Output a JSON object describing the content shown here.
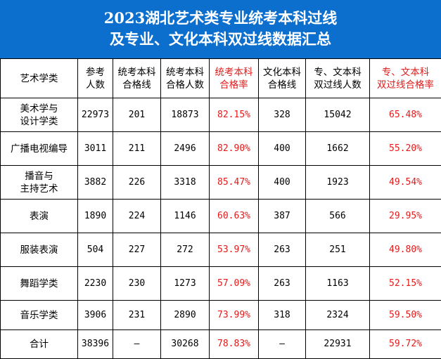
{
  "title": {
    "line1": "2023湖北艺术类专业统考本科过线",
    "line2": "及专业、文化本科双过线数据汇总"
  },
  "headers": [
    {
      "line1": "艺术学类",
      "line2": ""
    },
    {
      "line1": "参考",
      "line2": "人数"
    },
    {
      "line1": "统考本科",
      "line2": "合格线"
    },
    {
      "line1": "统考本科",
      "line2": "合格人数"
    },
    {
      "line1": "统考本科",
      "line2": "合格率"
    },
    {
      "line1": "文化本科",
      "line2": "合格线"
    },
    {
      "line1": "专、文本科",
      "line2": "双过线人数"
    },
    {
      "line1": "专、文本科",
      "line2": "双过线合格率"
    }
  ],
  "rows": [
    {
      "cat1": "美术学与",
      "cat2": "设计学类",
      "ref": "22973",
      "line": "201",
      "pass": "18873",
      "rate": "82.15%",
      "culture": "328",
      "dual": "15042",
      "dual_rate": "65.48%"
    },
    {
      "cat1": "广播电视编导",
      "cat2": "",
      "ref": "3011",
      "line": "211",
      "pass": "2496",
      "rate": "82.90%",
      "culture": "400",
      "dual": "1662",
      "dual_rate": "55.20%"
    },
    {
      "cat1": "播音与",
      "cat2": "主持艺术",
      "ref": "3882",
      "line": "226",
      "pass": "3318",
      "rate": "85.47%",
      "culture": "400",
      "dual": "1923",
      "dual_rate": "49.54%"
    },
    {
      "cat1": "表演",
      "cat2": "",
      "ref": "1890",
      "line": "224",
      "pass": "1146",
      "rate": "60.63%",
      "culture": "387",
      "dual": "566",
      "dual_rate": "29.95%"
    },
    {
      "cat1": "服装表演",
      "cat2": "",
      "ref": "504",
      "line": "227",
      "pass": "272",
      "rate": "53.97%",
      "culture": "263",
      "dual": "251",
      "dual_rate": "49.80%"
    },
    {
      "cat1": "舞蹈学类",
      "cat2": "",
      "ref": "2230",
      "line": "230",
      "pass": "1273",
      "rate": "57.09%",
      "culture": "263",
      "dual": "1163",
      "dual_rate": "52.15%"
    },
    {
      "cat1": "音乐学类",
      "cat2": "",
      "ref": "3906",
      "line": "231",
      "pass": "2890",
      "rate": "73.99%",
      "culture": "318",
      "dual": "2324",
      "dual_rate": "59.50%"
    },
    {
      "cat1": "合计",
      "cat2": "",
      "ref": "38396",
      "line": "—",
      "pass": "30268",
      "rate": "78.83%",
      "culture": "—",
      "dual": "22931",
      "dual_rate": "59.72%"
    }
  ],
  "colors": {
    "header_bg": "#0d6fcd",
    "header_text": "#ffffff",
    "accent_red": "#e21b1b",
    "grid_line": "#000000"
  }
}
